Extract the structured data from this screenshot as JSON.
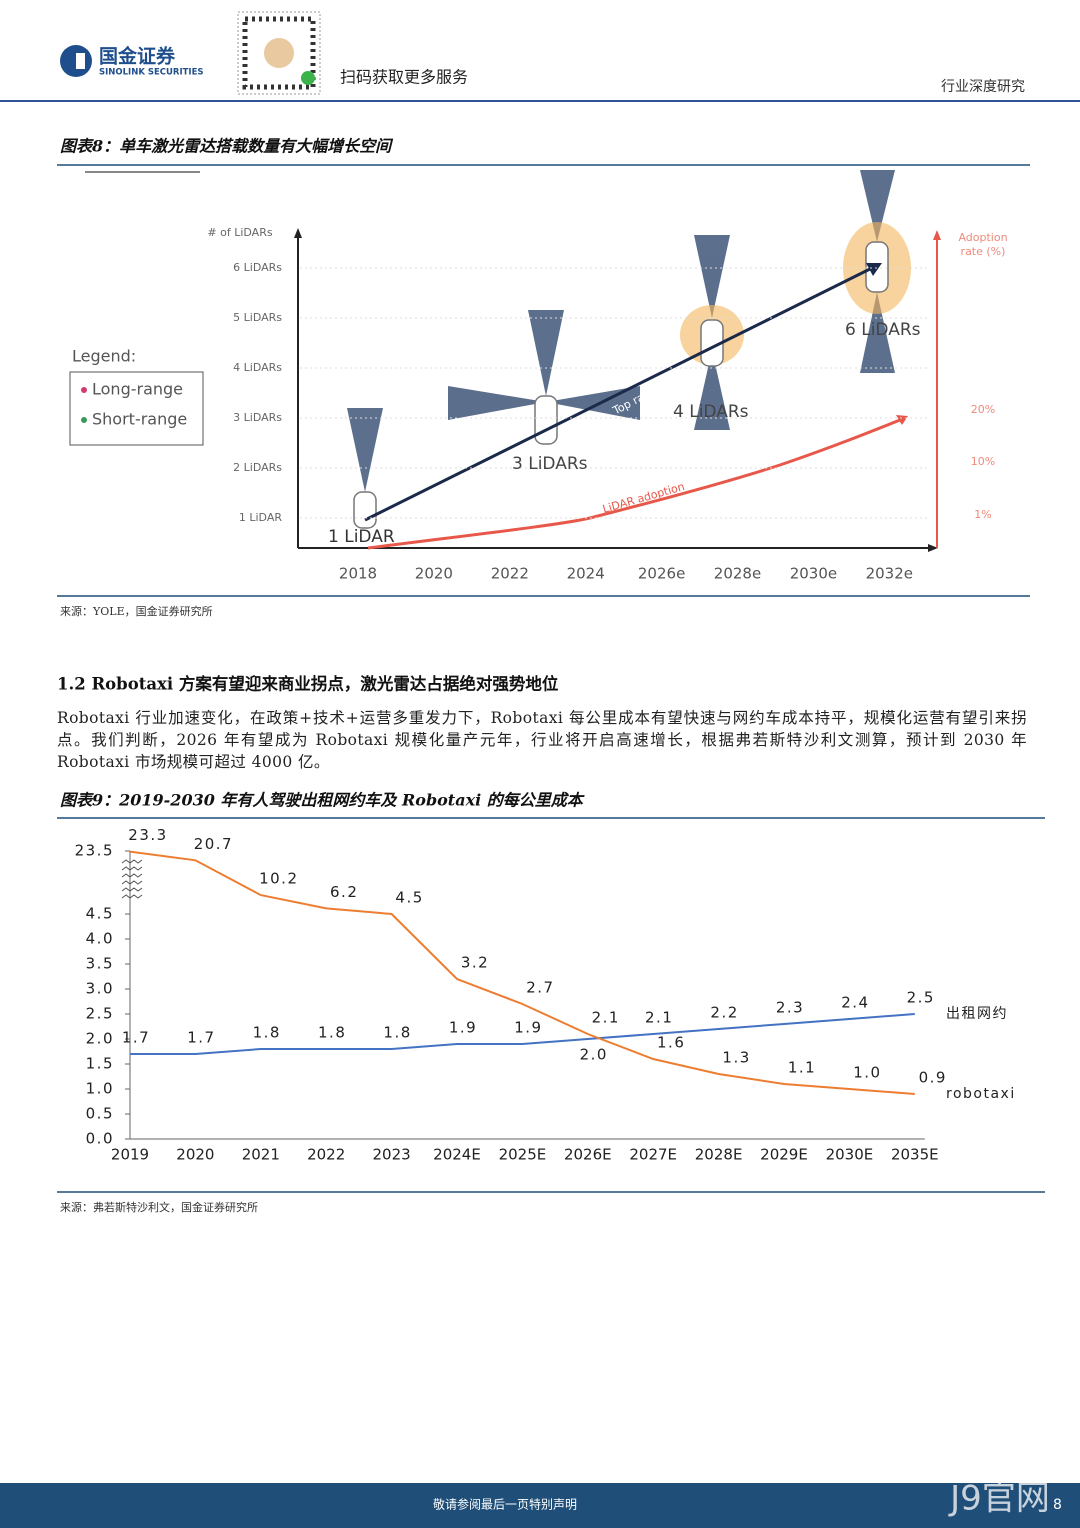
{
  "header": {
    "logo_cn": "国金证券",
    "logo_en": "SINOLINK SECURITIES",
    "qr_caption": "扫码获取更多服务",
    "section": "行业深度研究"
  },
  "figure8": {
    "title": "图表8：单车激光雷达搭载数量有大幅增长空间",
    "y_axis_label": "# of LiDARs",
    "y_labels": [
      "6 LiDARs",
      "5 LiDARs",
      "4 LiDARs",
      "3 LiDARs",
      "2 LiDARs",
      "1 LiDAR"
    ],
    "x_labels": [
      "2018",
      "2020",
      "2022",
      "2024",
      "2026e",
      "2028e",
      "2030e",
      "2032e"
    ],
    "right_axis_label": [
      "Adoption",
      "rate (%)"
    ],
    "right_labels": [
      "20%",
      "10%",
      "1%"
    ],
    "legend": {
      "title": "Legend:",
      "items": [
        "Long-range",
        "Short-range"
      ]
    },
    "annotations": [
      "1 LiDAR",
      "3 LiDARs",
      "4 LiDARs",
      "6 LiDARs",
      "Top range",
      "LiDAR adoption"
    ],
    "source": "来源：YOLE，国金证券研究所"
  },
  "section": {
    "heading": "1.2 Robotaxi 方案有望迎来商业拐点，激光雷达占据绝对强势地位",
    "paragraph": "Robotaxi 行业加速变化，在政策+技术+运营多重发力下，Robotaxi 每公里成本有望快速与网约车成本持平，规模化运营有望引来拐点。我们判断，2026 年有望成为 Robotaxi 规模化量产元年，行业将开启高速增长，根据弗若斯特沙利文测算，预计到 2030 年 Robotaxi 市场规模可超过 4000 亿。"
  },
  "chart_data": {
    "type": "line",
    "title": "图表9：2019-2030 年有人驾驶出租网约车及 Robotaxi 的每公里成本",
    "categories": [
      "2019",
      "2020",
      "2021",
      "2022",
      "2023",
      "2024E",
      "2025E",
      "2026E",
      "2027E",
      "2028E",
      "2029E",
      "2030E",
      "2035E"
    ],
    "series": [
      {
        "name": "出租网约",
        "color": "#4472c4",
        "values": [
          1.7,
          1.7,
          1.8,
          1.8,
          1.8,
          1.9,
          1.9,
          2.0,
          2.1,
          2.2,
          2.3,
          2.4,
          2.5
        ],
        "value_labels": [
          "1.7",
          "1.7",
          "1.8",
          "1.8",
          "1.8",
          "1.9",
          "1.9",
          "2.0",
          "2.1",
          "2.2",
          "2.3",
          "2.4",
          "2.5"
        ]
      },
      {
        "name": "robotaxi",
        "color": "#ed7d31",
        "values": [
          23.3,
          20.7,
          10.2,
          6.2,
          4.5,
          3.2,
          2.7,
          2.1,
          1.6,
          1.3,
          1.1,
          1.0,
          0.9
        ],
        "value_labels": [
          "23.3",
          "20.7",
          "10.2",
          "6.2",
          "4.5",
          "3.2",
          "2.7",
          "2.1",
          "1.6",
          "1.3",
          "1.1",
          "1.0",
          "0.9"
        ]
      }
    ],
    "ylim": [
      0,
      23.5
    ],
    "yticks": [
      {
        "value": 0,
        "label": "0.0"
      },
      0.5,
      {
        "value": 1,
        "label": "1.0"
      },
      1.5,
      {
        "value": 2,
        "label": "2.0"
      },
      2.5,
      {
        "value": 3,
        "label": "3.0"
      },
      3.5,
      {
        "value": 4,
        "label": "4.0"
      },
      4.5,
      23.5
    ],
    "axis_break": true,
    "source": "来源：弗若斯特沙利文，国金证券研究所"
  },
  "footer": {
    "notice": "敬请参阅最后一页特别声明",
    "page": "8",
    "watermark": "J9官网"
  }
}
